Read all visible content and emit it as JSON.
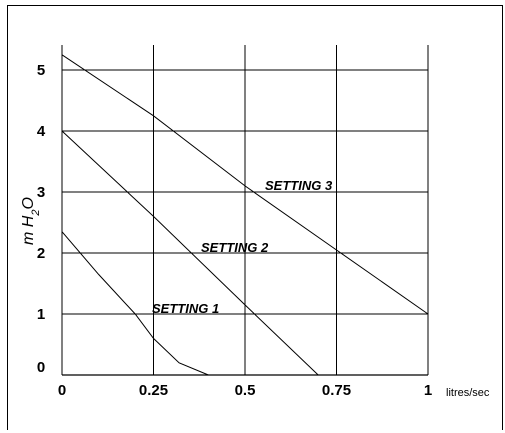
{
  "chart_data": {
    "type": "line",
    "ylabel": "m H2O",
    "ylabel_parts": {
      "main": "m H",
      "sub": "2",
      "tail": "O"
    },
    "x_unit": "litres/sec",
    "xlim": [
      0,
      1
    ],
    "ylim": [
      0,
      5.5
    ],
    "x_ticks": [
      "0",
      "0.25",
      "0.5",
      "0.75",
      "1"
    ],
    "x_tick_values": [
      0,
      0.25,
      0.5,
      0.75,
      1
    ],
    "y_ticks": [
      "0",
      "1",
      "2",
      "3",
      "4",
      "5"
    ],
    "y_tick_values": [
      0,
      1,
      2,
      3,
      4,
      5
    ],
    "grid": true,
    "series": [
      {
        "name": "SETTING 1",
        "points": [
          [
            0,
            2.35
          ],
          [
            0.1,
            1.65
          ],
          [
            0.2,
            1.0
          ],
          [
            0.25,
            0.6
          ],
          [
            0.32,
            0.2
          ],
          [
            0.4,
            0.0
          ]
        ]
      },
      {
        "name": "SETTING 2",
        "points": [
          [
            0,
            4.0
          ],
          [
            0.25,
            2.6
          ],
          [
            0.5,
            1.15
          ],
          [
            0.7,
            0.0
          ]
        ]
      },
      {
        "name": "SETTING 3",
        "points": [
          [
            0,
            5.25
          ],
          [
            0.25,
            4.25
          ],
          [
            0.5,
            3.1
          ],
          [
            0.75,
            2.05
          ],
          [
            1.0,
            1.0
          ]
        ]
      }
    ]
  }
}
